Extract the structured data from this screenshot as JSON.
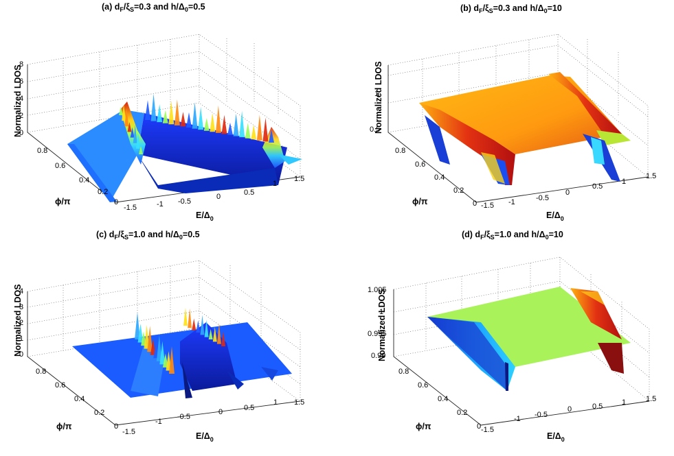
{
  "figure": {
    "panels": [
      {
        "id": "a",
        "title": "(a) d_F/ξ_S=0.3 and h/Δ_0=0.5",
        "title_parts": {
          "prefix": "(a) d",
          "sub1": "F",
          "mid1": "/ξ",
          "sub2": "S",
          "mid2": "=0.3 and h/Δ",
          "sub3": "0",
          "suffix": "=0.5"
        },
        "zlabel": "Normalized LDOS",
        "xlabel": {
          "main": "E/Δ",
          "sub": "0"
        },
        "ylabel": "ϕ/π",
        "zticks": [
          "0",
          "2",
          "4",
          "6",
          "8"
        ],
        "xticks": [
          "-1.5",
          "-1",
          "-0.5",
          "0",
          "0.5",
          "1",
          "1.5"
        ],
        "yticks": [
          "0",
          "0.2",
          "0.4",
          "0.6",
          "0.8"
        ]
      },
      {
        "id": "b",
        "title": "(b) d_F/ξ_S=0.3 and h/Δ_0=10",
        "title_parts": {
          "prefix": "(b) d",
          "sub1": "F",
          "mid1": "/ξ",
          "sub2": "S",
          "mid2": "=0.3 and h/Δ",
          "sub3": "0",
          "suffix": "=10"
        },
        "zlabel": "Normalized LDOS",
        "xlabel": {
          "main": "E/Δ",
          "sub": "0"
        },
        "ylabel": "ϕ/π",
        "zticks": [
          "0.5",
          "1"
        ],
        "xticks": [
          "-1.5",
          "-1",
          "-0.5",
          "0",
          "0.5",
          "1",
          "1.5"
        ],
        "yticks": [
          "0",
          "0.2",
          "0.4",
          "0.6",
          "0.8"
        ]
      },
      {
        "id": "c",
        "title": "(c) d_F/ξ_S=1.0 and h/Δ_0=0.5",
        "title_parts": {
          "prefix": "(c) d",
          "sub1": "F",
          "mid1": "/ξ",
          "sub2": "S",
          "mid2": "=1.0 and h/Δ",
          "sub3": "0",
          "suffix": "=0.5"
        },
        "zlabel": "Normalized LDOS",
        "xlabel": {
          "main": "E/Δ",
          "sub": "0"
        },
        "ylabel": "ϕ/π",
        "zticks": [
          "0",
          "1",
          "2",
          "3",
          "4"
        ],
        "xticks": [
          "-1.5",
          "-1",
          "-0.5",
          "0",
          "0.5",
          "1",
          "1.5"
        ],
        "yticks": [
          "0",
          "0.2",
          "0.4",
          "0.6",
          "0.8"
        ]
      },
      {
        "id": "d",
        "title": "(d) d_F/ξ_S=1.0 and h/Δ_0=10",
        "title_parts": {
          "prefix": "(d) d",
          "sub1": "F",
          "mid1": "/ξ",
          "sub2": "S",
          "mid2": "=1.0 and h/Δ",
          "sub3": "0",
          "suffix": "=10"
        },
        "zlabel": "Normalized LDOS",
        "xlabel": {
          "main": "E/Δ",
          "sub": "0"
        },
        "ylabel": "ϕ/π",
        "zticks": [
          "0.99",
          "0.995",
          "1",
          "1.005"
        ],
        "xticks": [
          "-1.5",
          "-1",
          "-0.5",
          "0",
          "0.5",
          "1",
          "1.5"
        ],
        "yticks": [
          "0",
          "0.2",
          "0.4",
          "0.6",
          "0.8"
        ]
      }
    ]
  },
  "chart_data": [
    {
      "type": "surface",
      "title": "(a) d_F/ξ_S=0.3 and h/Δ_0=0.5",
      "xlabel": "E/Δ_0",
      "ylabel": "ϕ/π",
      "zlabel": "Normalized LDOS",
      "xlim": [
        -1.5,
        1.5
      ],
      "ylim": [
        0,
        1
      ],
      "zlim": [
        0,
        8
      ],
      "description_values": {
        "baseline_ldos": 1.0,
        "gap_region": [
          -0.9,
          0.9
        ],
        "peak_positions_E": [
          -1.0,
          -0.6,
          -0.3,
          0.0,
          0.3,
          0.6,
          1.0
        ],
        "max_peak_ldos": 3.5
      }
    },
    {
      "type": "surface",
      "title": "(b) d_F/ξ_S=0.3 and h/Δ_0=10",
      "xlabel": "E/Δ_0",
      "ylabel": "ϕ/π",
      "zlabel": "Normalized LDOS",
      "xlim": [
        -1.5,
        1.5
      ],
      "ylim": [
        0,
        1
      ],
      "zlim": [
        0.45,
        1.2
      ],
      "description_values": {
        "plateau_ldos": 1.1,
        "edge_dips_E": [
          -1.0,
          1.0
        ],
        "min_ldos": 0.5
      }
    },
    {
      "type": "surface",
      "title": "(c) d_F/ξ_S=1.0 and h/Δ_0=0.5",
      "xlabel": "E/Δ_0",
      "ylabel": "ϕ/π",
      "zlabel": "Normalized LDOS",
      "xlim": [
        -1.5,
        1.5
      ],
      "ylim": [
        0,
        1
      ],
      "zlim": [
        0,
        4
      ],
      "description_values": {
        "baseline_ldos": 1.0,
        "peak_positions_E": [
          -0.9,
          0.0
        ],
        "max_peak_ldos": 2.5
      }
    },
    {
      "type": "surface",
      "title": "(d) d_F/ξ_S=1.0 and h/Δ_0=10",
      "xlabel": "E/Δ_0",
      "ylabel": "ϕ/π",
      "zlabel": "Normalized LDOS",
      "xlim": [
        -1.5,
        1.5
      ],
      "ylim": [
        0,
        1
      ],
      "zlim": [
        0.99,
        1.005
      ],
      "description_values": {
        "plateau_ldos": 0.998,
        "edge_features_E": [
          -1.0,
          1.0
        ]
      }
    }
  ]
}
